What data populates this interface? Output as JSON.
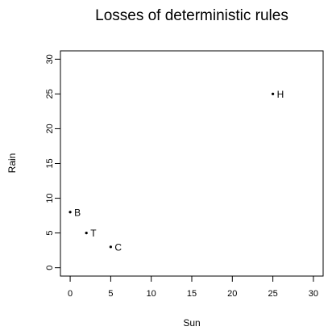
{
  "chart_data": {
    "type": "scatter",
    "title": "Losses of deterministic rules",
    "xlabel": "Sun",
    "ylabel": "Rain",
    "xlim": [
      -1.2,
      31.2
    ],
    "ylim": [
      -1.2,
      31.2
    ],
    "xticks": [
      0,
      5,
      10,
      15,
      20,
      25,
      30
    ],
    "yticks": [
      0,
      5,
      10,
      15,
      20,
      25,
      30
    ],
    "grid": false,
    "legend": "none",
    "point_color": "#000000",
    "points": [
      {
        "label": "H",
        "x": 25,
        "y": 25
      },
      {
        "label": "B",
        "x": 0,
        "y": 8
      },
      {
        "label": "T",
        "x": 2,
        "y": 5
      },
      {
        "label": "C",
        "x": 5,
        "y": 3
      }
    ]
  }
}
